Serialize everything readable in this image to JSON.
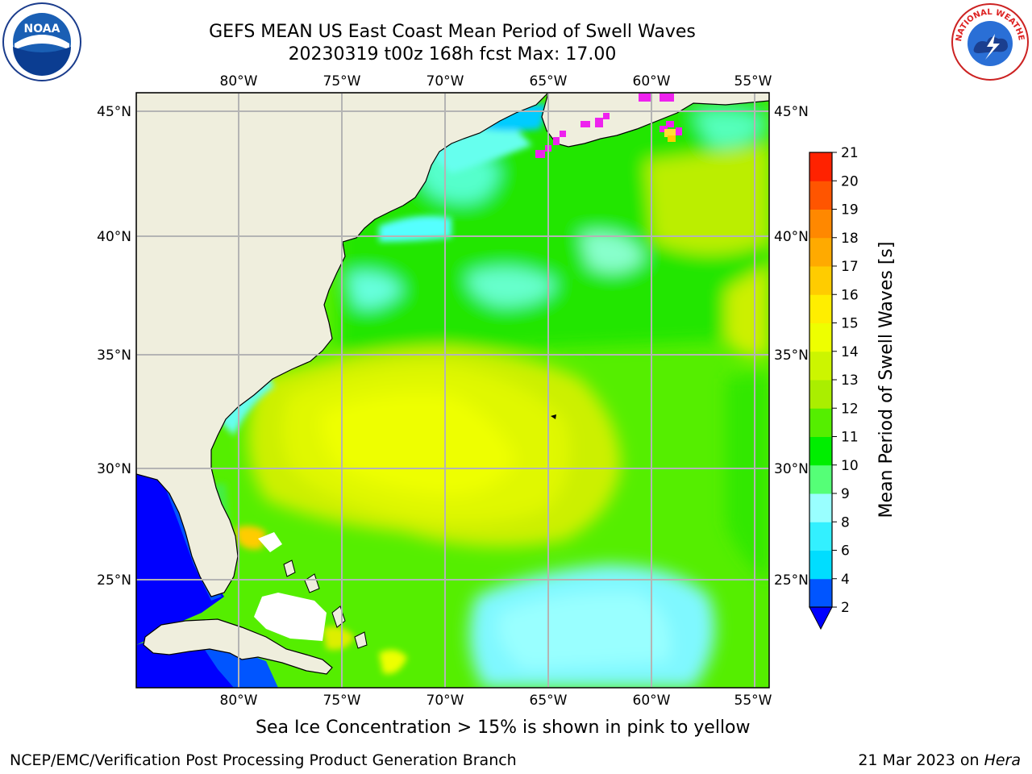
{
  "title_line1": "GEFS MEAN US East Coast Mean Period of Swell Waves",
  "title_line2": "20230319 t00z 168h fcst   Max: 17.00",
  "map": {
    "lon_labels": [
      "80°W",
      "75°W",
      "70°W",
      "65°W",
      "60°W",
      "55°W"
    ],
    "lat_labels": [
      "45°N",
      "40°N",
      "35°N",
      "30°N",
      "25°N"
    ],
    "lon_range": [
      -85,
      -55
    ],
    "lat_range": [
      20.5,
      46
    ]
  },
  "colorbar": {
    "label": "Mean Period of Swell Waves [s]",
    "ticks": [
      "2",
      "4",
      "6",
      "8",
      "9",
      "10",
      "11",
      "12",
      "13",
      "14",
      "15",
      "16",
      "17",
      "18",
      "19",
      "20",
      "21"
    ],
    "colors": [
      "#0055ff",
      "#00ddff",
      "#33f0ff",
      "#99ffff",
      "#55ff77",
      "#00ee00",
      "#55ee00",
      "#aaee00",
      "#ccf500",
      "#eeff00",
      "#ffee00",
      "#ffcc00",
      "#ffaa00",
      "#ff8800",
      "#ff5500",
      "#ff2200"
    ],
    "extend_color": "#0000ff"
  },
  "caption": "Sea Ice Concentration > 15% is shown in pink to yellow",
  "footer_left": "NCEP/EMC/Verification Post Processing Product Generation Branch",
  "footer_date": "21 Mar 2023 on",
  "footer_host": "Hera",
  "logos": {
    "noaa_text": "NOAA",
    "nws_text": "NATIONAL WEATHER SERVICE"
  },
  "colors": {
    "land": "#efeedd",
    "grid": "#b4b4b4",
    "sea_ice_pink": "#ee22ee"
  }
}
